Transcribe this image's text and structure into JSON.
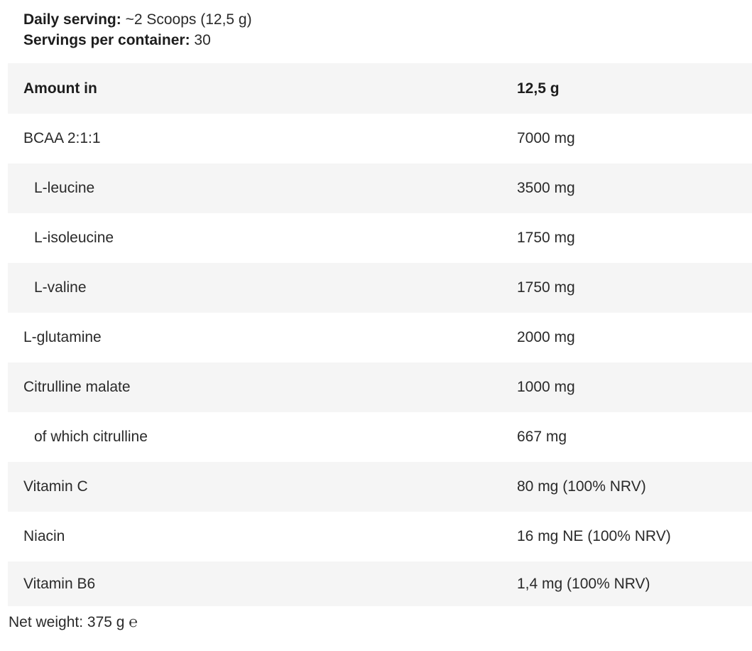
{
  "serving_info": {
    "daily_serving_label": "Daily serving:",
    "daily_serving_value": "~2 Scoops (12,5 g)",
    "servings_per_container_label": "Servings per container:",
    "servings_per_container_value": "30"
  },
  "table": {
    "header": {
      "name": "Amount in",
      "amount": "12,5 g"
    },
    "rows": [
      {
        "name": "BCAA 2:1:1",
        "amount": "7000 mg"
      },
      {
        "name": "L-leucine",
        "amount": "3500 mg"
      },
      {
        "name": "L-isoleucine",
        "amount": "1750 mg"
      },
      {
        "name": "L-valine",
        "amount": "1750 mg"
      },
      {
        "name": "L-glutamine",
        "amount": "2000 mg"
      },
      {
        "name": "Citrulline malate",
        "amount": "1000 mg"
      },
      {
        "name": "of which citrulline",
        "amount": "667 mg"
      },
      {
        "name": "Vitamin C",
        "amount": "80 mg (100% NRV)"
      },
      {
        "name": "Niacin",
        "amount": "16 mg NE (100% NRV)"
      },
      {
        "name": "Vitamin B6",
        "amount": "1,4 mg (100% NRV)"
      }
    ]
  },
  "footer": {
    "net_weight": "Net weight: 375 g ℮"
  },
  "colors": {
    "row_shaded_background": "#f5f5f5",
    "text_primary": "#1d1d1d",
    "text_secondary": "#2a2a2a",
    "page_background": "#ffffff"
  }
}
